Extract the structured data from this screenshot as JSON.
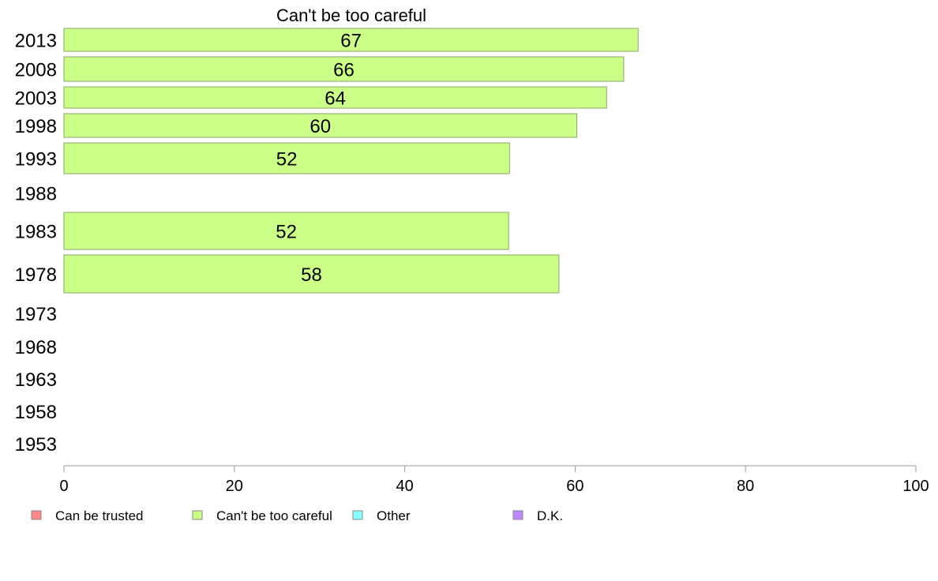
{
  "chart_data": {
    "type": "bar",
    "orientation": "horizontal",
    "title": "Can't be too careful",
    "xlabel": "",
    "ylabel": "",
    "xlim": [
      0,
      100
    ],
    "x_ticks": [
      "0",
      "20",
      "40",
      "60",
      "80",
      "100"
    ],
    "categories": [
      "2013",
      "2008",
      "2003",
      "1998",
      "1993",
      "1988",
      "1983",
      "1978",
      "1973",
      "1968",
      "1963",
      "1958",
      "1953"
    ],
    "values": [
      67.4,
      65.7,
      63.7,
      60.2,
      52.3,
      null,
      52.2,
      58.1,
      null,
      null,
      null,
      null,
      null
    ],
    "data_labels": [
      "67",
      "66",
      "64",
      "60",
      "52",
      "",
      "52",
      "58",
      "",
      "",
      "",
      "",
      ""
    ],
    "bar_color": "#ccff88",
    "bar_edge_color": "#88aa66",
    "axis_color": "#999999",
    "grid": false,
    "legend_position": "bottom",
    "legend": [
      {
        "label": "Can be trusted",
        "color": "#ff8888"
      },
      {
        "label": "Can't be too careful",
        "color": "#ccff88"
      },
      {
        "label": "Other",
        "color": "#88ffff"
      },
      {
        "label": "D.K.",
        "color": "#bb88ff"
      }
    ]
  }
}
